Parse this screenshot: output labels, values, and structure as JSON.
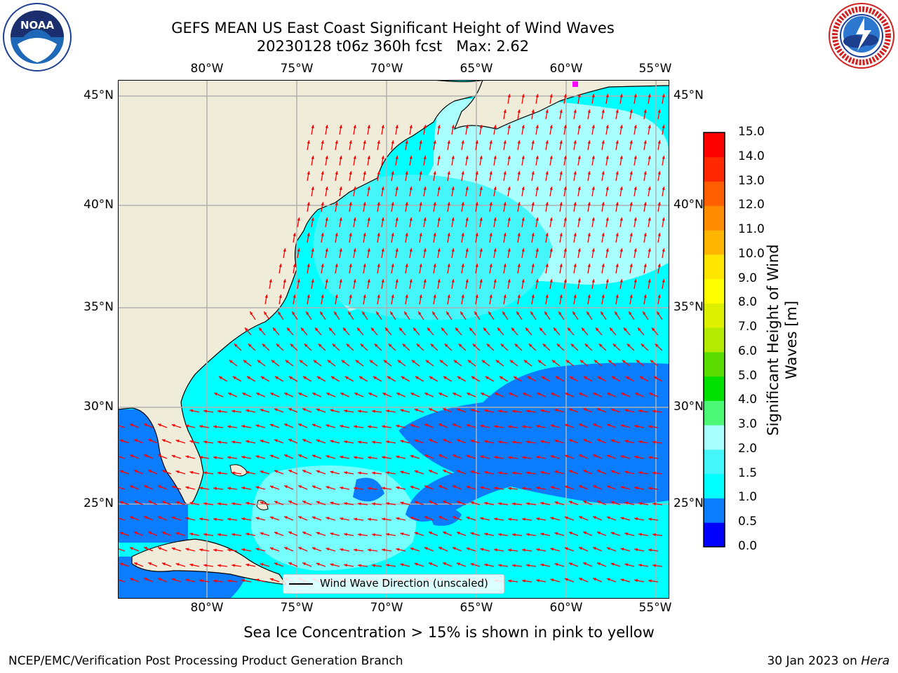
{
  "title_line1": "GEFS MEAN US East Coast Significant Height of Wind Waves",
  "title_line2": "20230128 t06z 360h fcst   Max: 2.62",
  "subtitle": "Sea Ice Concentration > 15% is shown in pink to yellow",
  "footer_left": "NCEP/EMC/Verification Post Processing Product Generation Branch",
  "footer_right_prefix": "30 Jan 2023 on ",
  "footer_right_host": "Hera",
  "legend_label": "Wind Wave Direction (unscaled)",
  "colorbar_label": "Significant Height of Wind Waves [m]",
  "logos": [
    "noaa-logo",
    "national-weather-service-logo"
  ],
  "noaa_logo_text": "NOAA",
  "lon_ticks": [
    "80°W",
    "75°W",
    "70°W",
    "65°W",
    "60°W",
    "55°W"
  ],
  "lat_ticks": [
    "45°N",
    "40°N",
    "35°N",
    "30°N",
    "25°N"
  ],
  "colorbar": {
    "ticks": [
      "0.0",
      "0.5",
      "1.0",
      "1.5",
      "2.0",
      "3.0",
      "4.0",
      "5.0",
      "6.0",
      "7.0",
      "8.0",
      "9.0",
      "10.0",
      "11.0",
      "12.0",
      "13.0",
      "14.0",
      "15.0"
    ],
    "colors": [
      "#0000ff",
      "#0a7dff",
      "#00ffff",
      "#44f5fa",
      "#aaffff",
      "#4cfa78",
      "#00e000",
      "#5adc00",
      "#b4ea00",
      "#dcf000",
      "#ffff00",
      "#ffe600",
      "#ffb400",
      "#ff8c00",
      "#ff5f00",
      "#ff2800",
      "#ff0000"
    ]
  },
  "colors": {
    "land": "#efecd9",
    "ocean_low": "#0a7dff",
    "ocean_mid": "#00ffff",
    "ocean_high": "#aaffff",
    "arrow": "#ff0000",
    "grid": "#b0b0b0",
    "ice": "#ff00ff"
  }
}
